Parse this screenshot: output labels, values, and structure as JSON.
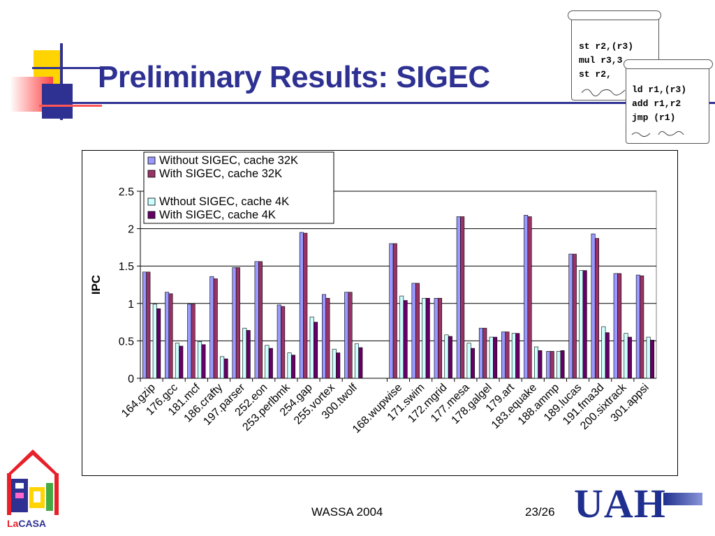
{
  "slide": {
    "title": "Preliminary Results: SIGEC",
    "footer_left": "WASSA 2004",
    "footer_right": "23/26",
    "logo_right": "UAH",
    "logo_left": {
      "la": "La",
      "casa": "CASA"
    }
  },
  "code_scroll_1": {
    "lines": "st r2,(r3)\nmul r3,3\nst r2,"
  },
  "code_scroll_2": {
    "lines": "ld r1,(r3)\nadd r1,r2\njmp (r1)"
  },
  "colors": {
    "title": "#2e3192",
    "series": [
      "#9999ff",
      "#993366",
      "#ccffff",
      "#660066"
    ]
  },
  "chart_data": {
    "type": "bar",
    "ylabel": "IPC",
    "xlabel": "",
    "ylim": [
      0,
      2.5
    ],
    "yticks": [
      "0",
      "0.5",
      "1",
      "1.5",
      "2",
      "2.5"
    ],
    "grid": true,
    "legend_position": "top-left inside plot",
    "categories": [
      "164.gzip",
      "176.gcc",
      "181.mcf",
      "186.crafty",
      "197.parser",
      "252.eon",
      "253.perlbmk",
      "254.gap",
      "255.vortex",
      "300.twolf",
      "168.wupwise",
      "171.swim",
      "172.mgrid",
      "177.mesa",
      "178.galgel",
      "179.art",
      "183.equake",
      "188.ammp",
      "189.lucas",
      "191.fma3d",
      "200.sixtrack",
      "301.appsi"
    ],
    "series": [
      {
        "name": "Without SIGEC, cache 32K",
        "values": [
          1.42,
          1.15,
          0.99,
          1.36,
          1.48,
          1.56,
          0.98,
          1.95,
          1.12,
          1.15,
          1.8,
          1.27,
          1.07,
          2.16,
          0.67,
          0.62,
          2.18,
          0.36,
          1.66,
          1.93,
          1.4,
          1.38
        ]
      },
      {
        "name": "With SIGEC, cache 32K",
        "values": [
          1.42,
          1.13,
          0.99,
          1.33,
          1.48,
          1.56,
          0.96,
          1.94,
          1.07,
          1.15,
          1.8,
          1.27,
          1.07,
          2.16,
          0.67,
          0.62,
          2.16,
          0.36,
          1.66,
          1.87,
          1.4,
          1.37
        ]
      },
      {
        "name": "Wthout SIGEC, cache 4K",
        "values": [
          0.99,
          0.47,
          0.49,
          0.29,
          0.67,
          0.44,
          0.34,
          0.82,
          0.39,
          0.46,
          1.1,
          1.07,
          0.58,
          0.47,
          0.55,
          0.6,
          0.42,
          0.36,
          1.44,
          0.69,
          0.6,
          0.55
        ]
      },
      {
        "name": "With SIGEC, cache 4K",
        "values": [
          0.93,
          0.43,
          0.45,
          0.26,
          0.64,
          0.4,
          0.31,
          0.75,
          0.34,
          0.41,
          1.04,
          1.07,
          0.56,
          0.4,
          0.55,
          0.6,
          0.37,
          0.37,
          1.44,
          0.61,
          0.55,
          0.51
        ]
      }
    ]
  }
}
